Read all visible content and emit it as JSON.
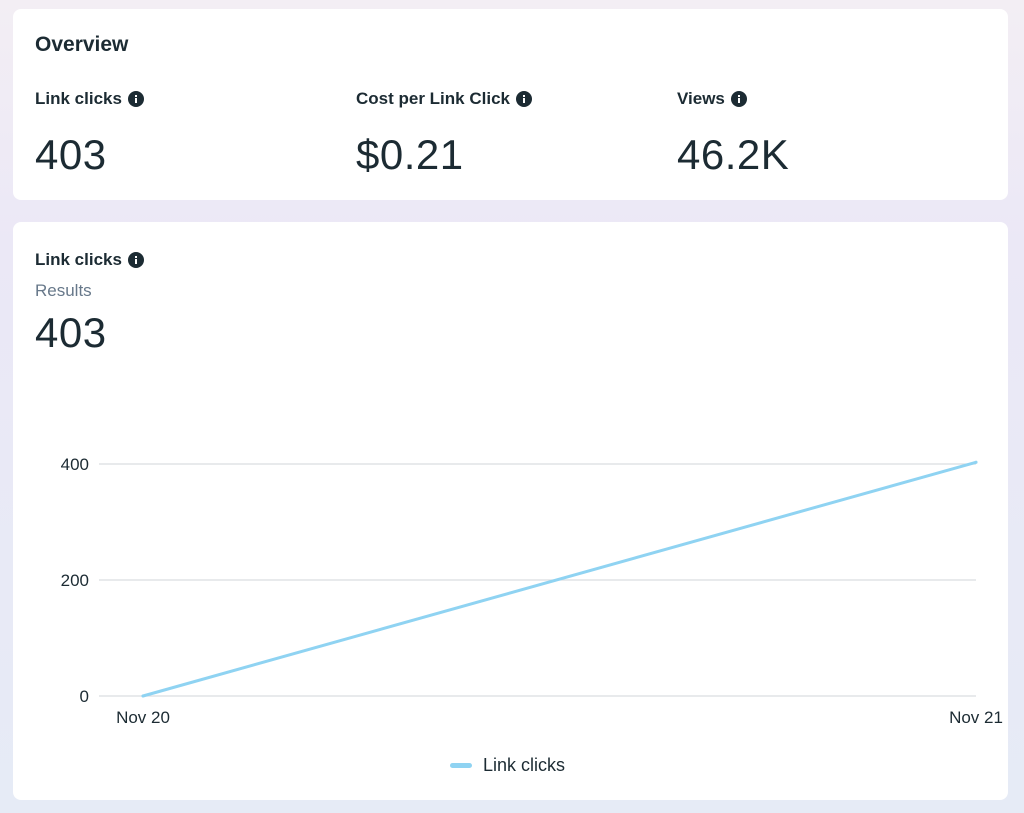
{
  "overview": {
    "title": "Overview",
    "metrics": [
      {
        "label": "Link clicks",
        "value": "403"
      },
      {
        "label": "Cost per Link Click",
        "value": "$0.21"
      },
      {
        "label": "Views",
        "value": "46.2K"
      }
    ]
  },
  "chart_card": {
    "title": "Link clicks",
    "subtitle": "Results",
    "total": "403"
  },
  "colors": {
    "line": "#8fd3f2",
    "grid": "#dadde1",
    "text": "#1c2b33",
    "muted": "#67788a"
  },
  "chart_data": {
    "type": "line",
    "title": "Link clicks",
    "x": [
      "Nov 20",
      "Nov 21"
    ],
    "series": [
      {
        "name": "Link clicks",
        "values": [
          0,
          403
        ]
      }
    ],
    "yticks": [
      0,
      200,
      400
    ],
    "ylim": [
      0,
      400
    ],
    "xlabel": "",
    "ylabel": "",
    "grid": true,
    "legend": "bottom-center"
  }
}
